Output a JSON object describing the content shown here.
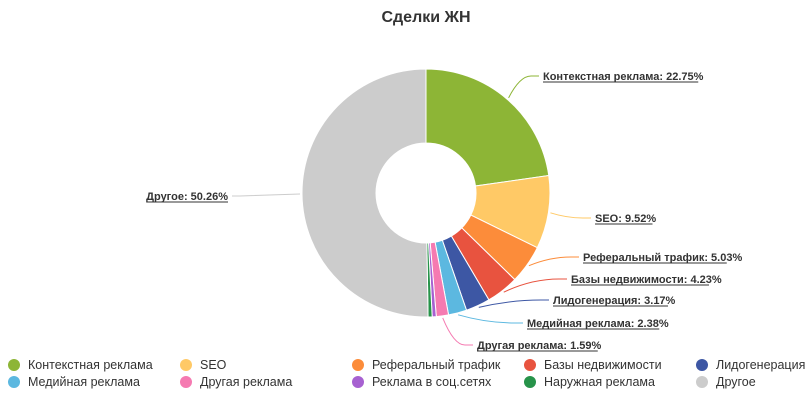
{
  "chart_data": {
    "type": "pie",
    "title": "Сделки ЖН",
    "donut": true,
    "slices": [
      {
        "name": "Контекстная реклама",
        "value": 22.75,
        "label": "Контекстная реклама: 22.75%",
        "color": "#8db536"
      },
      {
        "name": "SEO",
        "value": 9.52,
        "label": "SEO: 9.52%",
        "color": "#ffc966"
      },
      {
        "name": "Реферальный трафик",
        "value": 5.03,
        "label": "Реферальный трафик: 5.03%",
        "color": "#fc8c3a"
      },
      {
        "name": "Базы недвижимости",
        "value": 4.23,
        "label": "Базы недвижимости: 4.23%",
        "color": "#e8533f"
      },
      {
        "name": "Лидогенерация",
        "value": 3.17,
        "label": "Лидогенерация: 3.17%",
        "color": "#3d57a4"
      },
      {
        "name": "Медийная реклама",
        "value": 2.38,
        "label": "Медийная реклама: 2.38%",
        "color": "#5cb8e0"
      },
      {
        "name": "Другая реклама",
        "value": 1.59,
        "label": "Другая реклама: 1.59%",
        "color": "#f57ab1"
      },
      {
        "name": "Реклама в соц.сетях",
        "value": 0.53,
        "label": "",
        "color": "#a761d1"
      },
      {
        "name": "Наружная реклама",
        "value": 0.53,
        "label": "",
        "color": "#27934a"
      },
      {
        "name": "Другое",
        "value": 50.26,
        "label": "Другое: 50.26%",
        "color": "#cccccc"
      }
    ],
    "legend_placement": "bottom"
  }
}
